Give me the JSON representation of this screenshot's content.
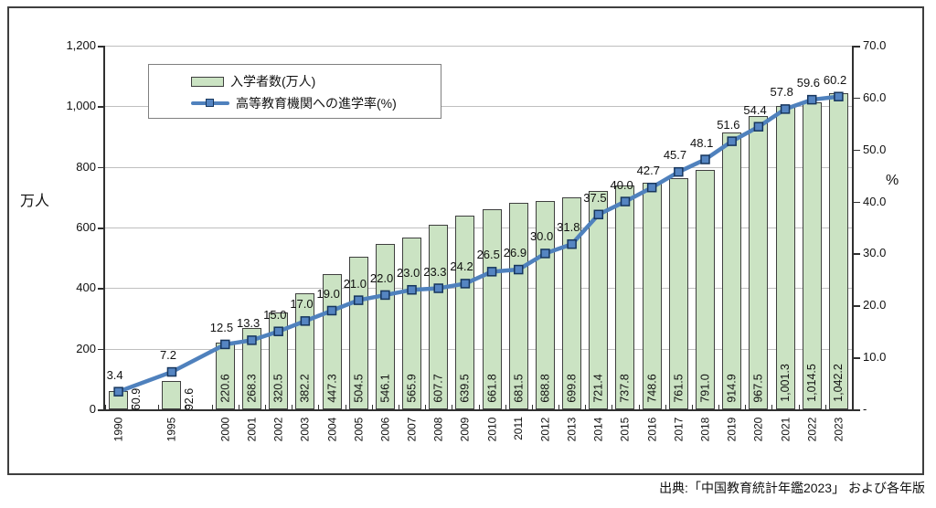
{
  "source": "出典:「中国教育統計年鑑2023」 および各年版",
  "chart_data": {
    "type": "combo-bar-line",
    "categories": [
      "1990",
      "1995",
      "2000",
      "2001",
      "2002",
      "2003",
      "2004",
      "2005",
      "2006",
      "2007",
      "2008",
      "2009",
      "2010",
      "2011",
      "2012",
      "2013",
      "2014",
      "2015",
      "2016",
      "2017",
      "2018",
      "2019",
      "2020",
      "2021",
      "2022",
      "2023"
    ],
    "series": [
      {
        "name": "入学者数(万人)",
        "type": "bar",
        "axis": "left",
        "values": [
          60.9,
          92.6,
          220.6,
          268.3,
          320.5,
          382.2,
          447.3,
          504.5,
          546.1,
          565.9,
          607.7,
          639.5,
          661.8,
          681.5,
          688.8,
          699.8,
          721.4,
          737.8,
          748.6,
          761.5,
          791.0,
          914.9,
          967.5,
          1001.3,
          1014.5,
          1042.2
        ],
        "labels": [
          "60.9",
          "92.6",
          "220.6",
          "268.3",
          "320.5",
          "382.2",
          "447.3",
          "504.5",
          "546.1",
          "565.9",
          "607.7",
          "639.5",
          "661.8",
          "681.5",
          "688.8",
          "699.8",
          "721.4",
          "737.8",
          "748.6",
          "761.5",
          "791.0",
          "914.9",
          "967.5",
          "1,001.3",
          "1,014.5",
          "1,042.2"
        ]
      },
      {
        "name": "高等教育機関への進学率(%)",
        "type": "line",
        "axis": "right",
        "values": [
          3.4,
          7.2,
          12.5,
          13.3,
          15.0,
          17.0,
          19.0,
          21.0,
          22.0,
          23.0,
          23.3,
          24.2,
          26.5,
          26.9,
          30.0,
          31.8,
          37.5,
          40.0,
          42.7,
          45.7,
          48.1,
          51.6,
          54.4,
          57.8,
          59.6,
          60.2
        ],
        "labels": [
          "3.4",
          "7.2",
          "12.5",
          "13.3",
          "15.0",
          "17.0",
          "19.0",
          "21.0",
          "22.0",
          "23.0",
          "23.3",
          "24.2",
          "26.5",
          "26.9",
          "30.0",
          "31.8",
          "37.5",
          "40.0",
          "42.7",
          "45.7",
          "48.1",
          "51.6",
          "54.4",
          "57.8",
          "59.6",
          "60.2"
        ]
      }
    ],
    "left_axis": {
      "label": "万人",
      "min": 0,
      "max": 1200,
      "tick_step": 200,
      "tick_labels": [
        "0",
        "200",
        "400",
        "600",
        "800",
        "1,000",
        "1,200"
      ]
    },
    "right_axis": {
      "label": "%",
      "min": 0,
      "max": 70,
      "tick_step": 10,
      "tick_labels": [
        "-",
        "10.0",
        "20.0",
        "30.0",
        "40.0",
        "50.0",
        "60.0",
        "70.0"
      ]
    },
    "layout": {
      "grid": true,
      "legend_position": "top-left-inside",
      "x_labels_rotated": true,
      "bar_labels_rotated": true,
      "blank_slots_after": [
        "1990",
        "1995"
      ]
    },
    "colors": {
      "bar_fill": "#cbe3c3",
      "bar_border": "#3f3f3f",
      "line": "#4f81bd",
      "marker_fill": "#5585c2",
      "marker_border": "#17365d",
      "gridline": "#bfbfbf",
      "axis": "#303030"
    }
  }
}
